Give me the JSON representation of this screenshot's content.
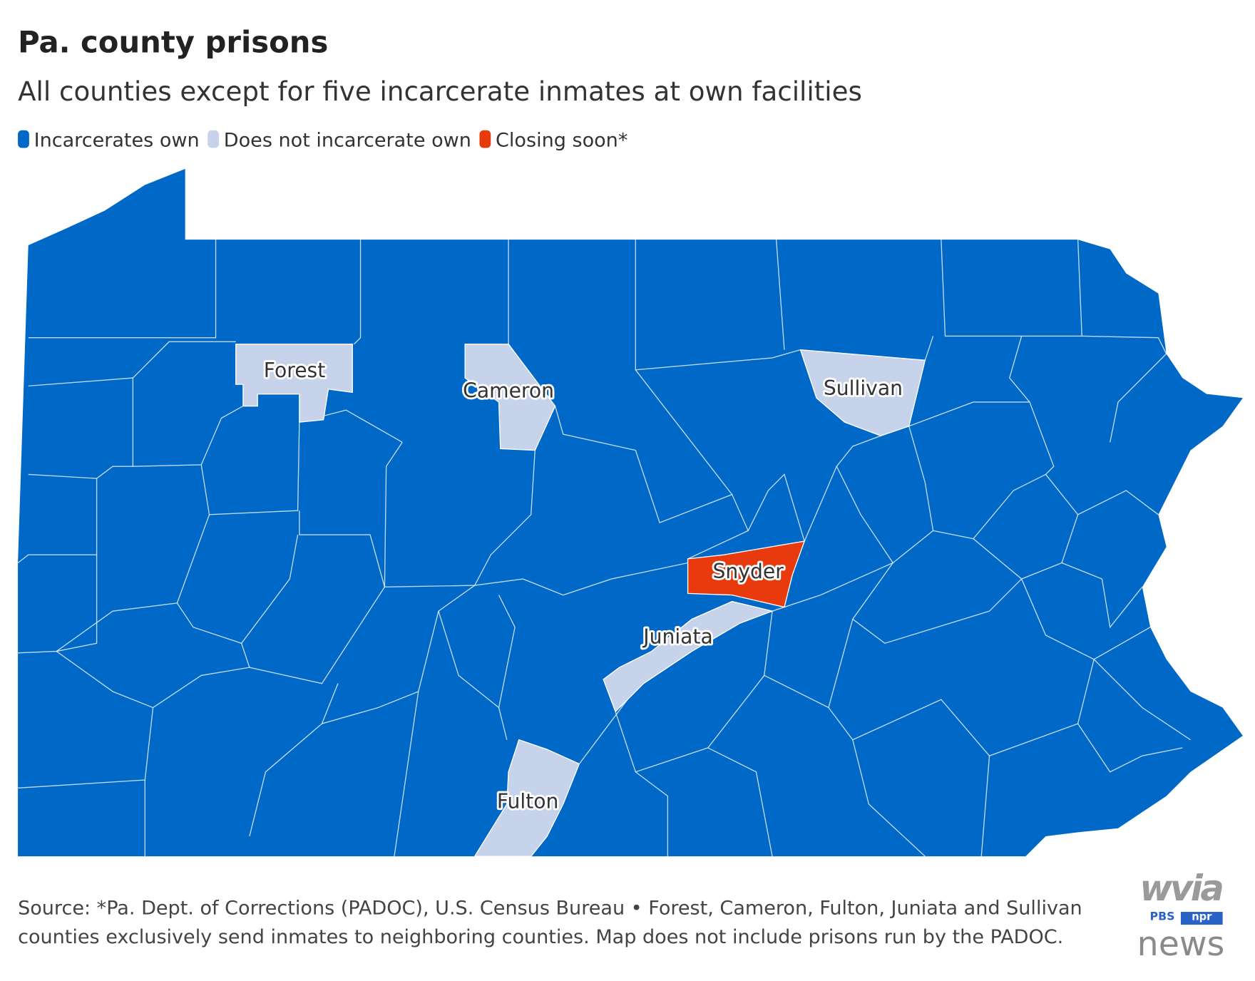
{
  "header": {
    "title": "Pa. county prisons",
    "subtitle": "All counties except for five incarcerate inmates at own facilities"
  },
  "legend": [
    {
      "label": "Incarcerates own",
      "color": "#0068c6"
    },
    {
      "label": "Does not incarcerate own",
      "color": "#c6d3eb"
    },
    {
      "label": "Closing soon*",
      "color": "#e83a0c"
    }
  ],
  "map": {
    "counties": [
      {
        "label": "Forest",
        "color": "#c6d3eb"
      },
      {
        "label": "Cameron",
        "color": "#c6d3eb"
      },
      {
        "label": "Sullivan",
        "color": "#c6d3eb"
      },
      {
        "label": "Snyder",
        "color": "#e83a0c"
      },
      {
        "label": "Juniata",
        "color": "#c6d3eb"
      },
      {
        "label": "Fulton",
        "color": "#c6d3eb"
      }
    ]
  },
  "footer": {
    "source_lines": [
      "Source: *Pa. Dept. of Corrections (PADOC), U.S. Census Bureau • Forest, Cameron, Fulton, Juniata and Sullivan",
      "counties exclusively send inmates to neighboring counties. Map does not include prisons run by the PADOC."
    ]
  },
  "logo": {
    "name": "wvia",
    "partners": [
      "PBS",
      "npr"
    ],
    "tagline": "news"
  }
}
